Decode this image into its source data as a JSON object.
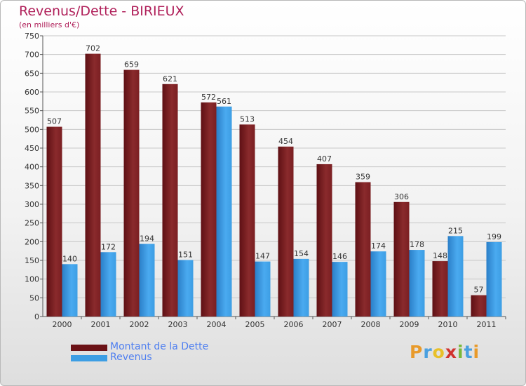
{
  "chart_data": {
    "type": "bar",
    "title": "Revenus/Dette - BIRIEUX",
    "subtitle": "(en milliers d'€)",
    "categories": [
      "2000",
      "2001",
      "2002",
      "2003",
      "2004",
      "2005",
      "2006",
      "2007",
      "2008",
      "2009",
      "2010",
      "2011"
    ],
    "series": [
      {
        "name": "Montant de la Dette",
        "color": "#7a1f22",
        "values": [
          507,
          702,
          659,
          621,
          572,
          513,
          454,
          407,
          359,
          306,
          148,
          57
        ]
      },
      {
        "name": "Revenus",
        "color": "#3d9ee4",
        "values": [
          140,
          172,
          194,
          151,
          561,
          147,
          154,
          146,
          174,
          178,
          215,
          199
        ]
      }
    ],
    "yticks": [
      0,
      50,
      100,
      150,
      200,
      250,
      300,
      350,
      400,
      450,
      500,
      550,
      600,
      650,
      700,
      750
    ],
    "ylim": [
      0,
      750
    ],
    "grid": true,
    "legend": "bottom-left"
  },
  "logo_text": "Proxiti"
}
